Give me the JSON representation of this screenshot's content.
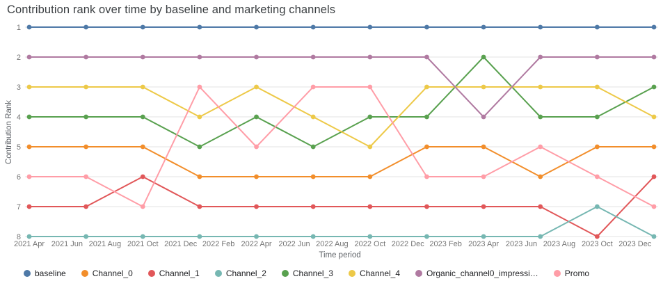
{
  "chart_data": {
    "type": "line",
    "title": "Contribution rank over time by baseline and marketing channels",
    "xlabel": "Time period",
    "ylabel": "Contribution Rank",
    "y_ticks": [
      1,
      2,
      3,
      4,
      5,
      6,
      7,
      8
    ],
    "y_reversed": true,
    "ylim": [
      1,
      8
    ],
    "grid": true,
    "legend_position": "bottom",
    "x_tick_labels": [
      "2021 Apr",
      "2021 Jun",
      "2021 Aug",
      "2021 Oct",
      "2021 Dec",
      "2022 Feb",
      "2022 Apr",
      "2022 Jun",
      "2022 Aug",
      "2022 Oct",
      "2022 Dec",
      "2023 Feb",
      "2023 Apr",
      "2023 Jun",
      "2023 Aug",
      "2023 Oct",
      "2023 Dec"
    ],
    "x_tick_months": [
      0,
      2,
      4,
      6,
      8,
      10,
      12,
      14,
      16,
      18,
      20,
      22,
      24,
      26,
      28,
      30,
      32
    ],
    "x_points_months": [
      0,
      3,
      6,
      9,
      12,
      15,
      18,
      21,
      24,
      27,
      30,
      33
    ],
    "x_range_months": [
      0,
      33
    ],
    "colors": {
      "grid": "#e3e3e3",
      "tick_text": "#757575",
      "axis_title_text": "#5f6368",
      "title_text": "#3c4043",
      "legend_text": "#202124"
    },
    "series": [
      {
        "name": "baseline",
        "color": "#4e79a7",
        "values": [
          1,
          1,
          1,
          1,
          1,
          1,
          1,
          1,
          1,
          1,
          1,
          1
        ]
      },
      {
        "name": "Channel_0",
        "color": "#f28e2b",
        "values": [
          5,
          5,
          5,
          6,
          6,
          6,
          6,
          5,
          5,
          6,
          5,
          5
        ]
      },
      {
        "name": "Channel_1",
        "color": "#e15759",
        "values": [
          7,
          7,
          6,
          7,
          7,
          7,
          7,
          7,
          7,
          7,
          8,
          6
        ]
      },
      {
        "name": "Channel_2",
        "color": "#76b7b2",
        "values": [
          8,
          8,
          8,
          8,
          8,
          8,
          8,
          8,
          8,
          8,
          7,
          8
        ]
      },
      {
        "name": "Channel_3",
        "color": "#59a14f",
        "values": [
          4,
          4,
          4,
          5,
          4,
          5,
          4,
          4,
          2,
          4,
          4,
          3
        ]
      },
      {
        "name": "Channel_4",
        "color": "#edc948",
        "values": [
          3,
          3,
          3,
          4,
          3,
          4,
          5,
          3,
          3,
          3,
          3,
          4
        ]
      },
      {
        "name": "Organic_channel0_impressi…",
        "color": "#b07aa1",
        "values": [
          2,
          2,
          2,
          2,
          2,
          2,
          2,
          2,
          4,
          2,
          2,
          2
        ]
      },
      {
        "name": "Promo",
        "color": "#ff9da7",
        "values": [
          6,
          6,
          7,
          3,
          5,
          3,
          3,
          6,
          6,
          5,
          6,
          7
        ]
      }
    ]
  }
}
